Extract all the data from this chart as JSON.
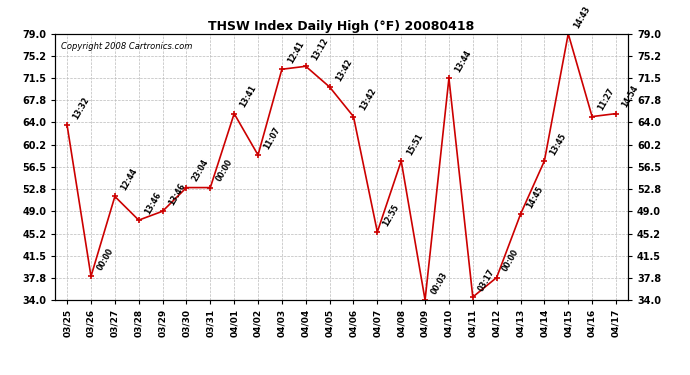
{
  "title": "THSW Index Daily High (°F) 20080418",
  "copyright": "Copyright 2008 Cartronics.com",
  "x_labels": [
    "03/25",
    "03/26",
    "03/27",
    "03/28",
    "03/29",
    "03/30",
    "03/31",
    "04/01",
    "04/02",
    "04/03",
    "04/04",
    "04/05",
    "04/06",
    "04/07",
    "04/08",
    "04/09",
    "04/10",
    "04/11",
    "04/12",
    "04/13",
    "04/14",
    "04/15",
    "04/16",
    "04/17"
  ],
  "y_values": [
    63.5,
    38.0,
    51.5,
    47.5,
    49.0,
    53.0,
    53.0,
    65.5,
    58.5,
    73.0,
    73.5,
    70.0,
    65.0,
    45.5,
    57.5,
    34.0,
    71.5,
    34.5,
    37.8,
    48.5,
    57.5,
    79.0,
    65.0,
    65.5
  ],
  "point_labels": [
    "13:32",
    "00:00",
    "12:44",
    "13:46",
    "13:46",
    "23:04",
    "00:00",
    "13:41",
    "11:07",
    "12:41",
    "13:12",
    "13:42",
    "13:42",
    "12:55",
    "15:51",
    "00:03",
    "13:44",
    "03:17",
    "00:00",
    "14:45",
    "13:45",
    "14:43",
    "11:27",
    "14:54"
  ],
  "line_color": "#cc0000",
  "marker_color": "#cc0000",
  "bg_color": "#ffffff",
  "plot_bg_color": "#ffffff",
  "grid_color": "#bbbbbb",
  "ylim": [
    34.0,
    79.0
  ],
  "yticks": [
    34.0,
    37.8,
    41.5,
    45.2,
    49.0,
    52.8,
    56.5,
    60.2,
    64.0,
    67.8,
    71.5,
    75.2,
    79.0
  ]
}
